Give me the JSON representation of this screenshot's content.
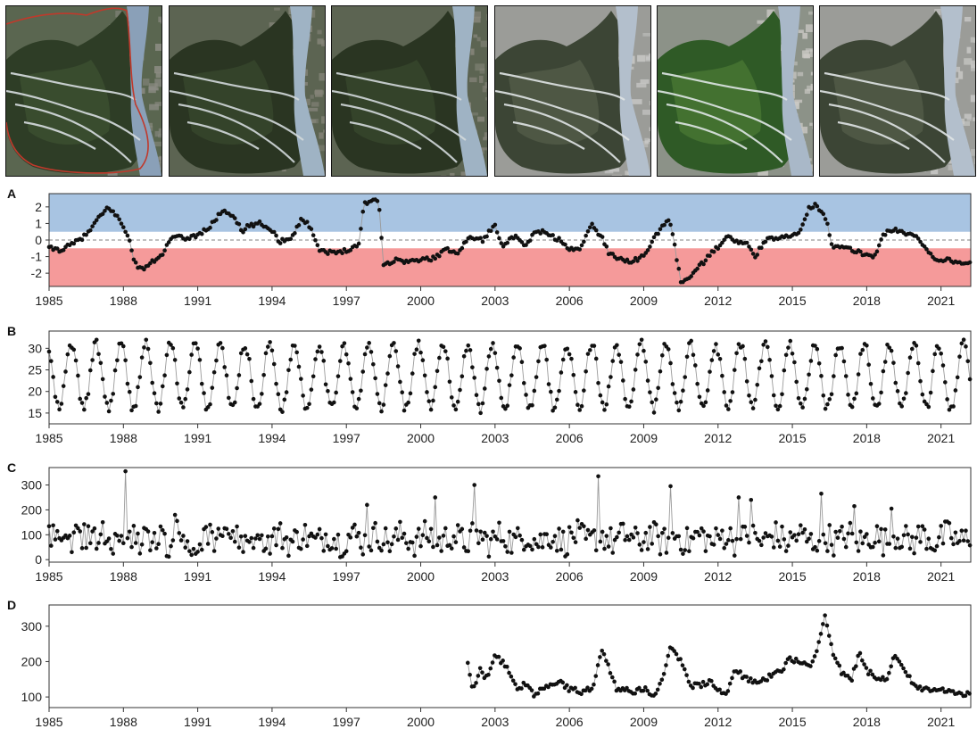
{
  "figure": {
    "satellite_tiles": [
      {
        "tone": "natural",
        "has_outline": true
      },
      {
        "tone": "natural-dark",
        "has_outline": false
      },
      {
        "tone": "natural-dark",
        "has_outline": false
      },
      {
        "tone": "bright-urban",
        "has_outline": false
      },
      {
        "tone": "vivid-green",
        "has_outline": false
      },
      {
        "tone": "bright-urban",
        "has_outline": false
      }
    ],
    "colors": {
      "positive_band": "#a8c4e2",
      "negative_band": "#f59a9a",
      "markers": "#111111",
      "line": "#9a9a9a",
      "outline": "#c0392b"
    }
  },
  "chart_data": [
    {
      "panel_label": "A",
      "type": "scatter",
      "x_range": [
        1985.0,
        2022.2
      ],
      "ylim": [
        -2.8,
        2.8
      ],
      "yticks": [
        -2,
        -1,
        0,
        1,
        2
      ],
      "xticks": [
        1985,
        1988,
        1991,
        1994,
        1997,
        2000,
        2003,
        2006,
        2009,
        2012,
        2015,
        2018,
        2021
      ],
      "shaded_bands": [
        {
          "from": 0.5,
          "to": 2.8,
          "color": "positive_band"
        },
        {
          "from": -2.8,
          "to": -0.5,
          "color": "negative_band"
        }
      ],
      "reference_line": 0,
      "anchors": [
        [
          1985.0,
          -0.5
        ],
        [
          1985.5,
          -0.6
        ],
        [
          1986.0,
          -0.2
        ],
        [
          1986.5,
          0.3
        ],
        [
          1987.0,
          1.3
        ],
        [
          1987.4,
          2.0
        ],
        [
          1987.8,
          1.3
        ],
        [
          1988.2,
          0.3
        ],
        [
          1988.4,
          -1.2
        ],
        [
          1988.7,
          -1.8
        ],
        [
          1989.0,
          -1.5
        ],
        [
          1989.5,
          -1.0
        ],
        [
          1990.0,
          0.2
        ],
        [
          1990.5,
          0.1
        ],
        [
          1991.0,
          0.3
        ],
        [
          1991.5,
          0.8
        ],
        [
          1992.0,
          1.8
        ],
        [
          1992.5,
          1.4
        ],
        [
          1992.8,
          0.4
        ],
        [
          1993.0,
          0.8
        ],
        [
          1993.5,
          1.0
        ],
        [
          1994.0,
          0.6
        ],
        [
          1994.3,
          -0.1
        ],
        [
          1994.8,
          0.2
        ],
        [
          1995.2,
          1.3
        ],
        [
          1995.6,
          0.7
        ],
        [
          1995.9,
          -0.6
        ],
        [
          1996.5,
          -0.8
        ],
        [
          1997.0,
          -0.6
        ],
        [
          1997.5,
          -0.3
        ],
        [
          1997.7,
          2.2
        ],
        [
          1998.3,
          2.5
        ],
        [
          1998.5,
          -1.5
        ],
        [
          1999.0,
          -1.2
        ],
        [
          1999.5,
          -1.3
        ],
        [
          2000.0,
          -1.2
        ],
        [
          2000.5,
          -1.1
        ],
        [
          2001.0,
          -0.6
        ],
        [
          2001.5,
          -0.7
        ],
        [
          2002.0,
          0.2
        ],
        [
          2002.5,
          0.0
        ],
        [
          2003.0,
          0.9
        ],
        [
          2003.3,
          -0.3
        ],
        [
          2003.8,
          0.2
        ],
        [
          2004.2,
          -0.4
        ],
        [
          2004.7,
          0.6
        ],
        [
          2005.2,
          0.3
        ],
        [
          2005.6,
          0.0
        ],
        [
          2006.0,
          -0.6
        ],
        [
          2006.4,
          -0.5
        ],
        [
          2006.9,
          0.9
        ],
        [
          2007.3,
          0.2
        ],
        [
          2007.6,
          -0.8
        ],
        [
          2008.0,
          -1.1
        ],
        [
          2008.5,
          -1.3
        ],
        [
          2009.0,
          -1.0
        ],
        [
          2009.5,
          0.3
        ],
        [
          2010.0,
          1.3
        ],
        [
          2010.2,
          0.1
        ],
        [
          2010.5,
          -2.6
        ],
        [
          2011.0,
          -2.0
        ],
        [
          2011.5,
          -1.2
        ],
        [
          2012.0,
          -0.4
        ],
        [
          2012.3,
          0.2
        ],
        [
          2012.8,
          -0.1
        ],
        [
          2013.2,
          -0.3
        ],
        [
          2013.5,
          -1.0
        ],
        [
          2013.9,
          0.0
        ],
        [
          2014.4,
          0.1
        ],
        [
          2014.9,
          0.2
        ],
        [
          2015.3,
          0.6
        ],
        [
          2015.7,
          2.0
        ],
        [
          2016.0,
          2.1
        ],
        [
          2016.4,
          1.2
        ],
        [
          2016.6,
          -0.4
        ],
        [
          2017.2,
          -0.5
        ],
        [
          2017.8,
          -0.8
        ],
        [
          2018.3,
          -1.0
        ],
        [
          2018.7,
          0.4
        ],
        [
          2019.2,
          0.6
        ],
        [
          2019.6,
          0.4
        ],
        [
          2020.0,
          0.2
        ],
        [
          2020.4,
          -0.5
        ],
        [
          2020.8,
          -1.2
        ],
        [
          2021.3,
          -1.2
        ],
        [
          2021.8,
          -1.4
        ],
        [
          2022.2,
          -1.3
        ]
      ]
    },
    {
      "panel_label": "B",
      "type": "line",
      "x_range": [
        1985.0,
        2022.2
      ],
      "ylim": [
        12.5,
        34
      ],
      "yticks": [
        15,
        20,
        25,
        30
      ],
      "xticks": [
        1985,
        1988,
        1991,
        1994,
        1997,
        2000,
        2003,
        2006,
        2009,
        2012,
        2015,
        2018,
        2021
      ],
      "seasonal": {
        "mean": 23.5,
        "amplitude": 7.5,
        "period_years": 1,
        "peak_phase": 0.95
      },
      "notes": "Monthly values oscillating seasonally between ~14 and ~33"
    },
    {
      "panel_label": "C",
      "type": "line",
      "x_range": [
        1985.0,
        2022.2
      ],
      "ylim": [
        -10,
        370
      ],
      "yticks": [
        0,
        100,
        200,
        300
      ],
      "xticks": [
        1985,
        1988,
        1991,
        1994,
        1997,
        2000,
        2003,
        2006,
        2009,
        2012,
        2015,
        2018,
        2021
      ],
      "spikes": [
        [
          1988.1,
          355
        ],
        [
          1990.1,
          180
        ],
        [
          1997.8,
          220
        ],
        [
          2000.6,
          250
        ],
        [
          2002.2,
          300
        ],
        [
          2007.2,
          335
        ],
        [
          2010.1,
          295
        ],
        [
          2012.8,
          250
        ],
        [
          2013.3,
          240
        ],
        [
          2016.2,
          265
        ],
        [
          2017.5,
          215
        ],
        [
          2019.0,
          205
        ]
      ],
      "baseline_mean": 85,
      "baseline_spread": 60
    },
    {
      "panel_label": "D",
      "type": "line",
      "x_range": [
        1985.0,
        2022.2
      ],
      "ylim": [
        70,
        360
      ],
      "yticks": [
        100,
        200,
        300
      ],
      "xticks": [
        1985,
        1988,
        1991,
        1994,
        1997,
        2000,
        2003,
        2006,
        2009,
        2012,
        2015,
        2018,
        2021
      ],
      "start": 2001.9,
      "anchors": [
        [
          2001.9,
          190
        ],
        [
          2002.1,
          120
        ],
        [
          2002.4,
          175
        ],
        [
          2002.7,
          150
        ],
        [
          2003.0,
          215
        ],
        [
          2003.3,
          200
        ],
        [
          2003.6,
          170
        ],
        [
          2003.9,
          125
        ],
        [
          2004.3,
          140
        ],
        [
          2004.6,
          105
        ],
        [
          2004.9,
          120
        ],
        [
          2005.3,
          135
        ],
        [
          2005.6,
          150
        ],
        [
          2006.0,
          120
        ],
        [
          2006.5,
          115
        ],
        [
          2007.0,
          130
        ],
        [
          2007.3,
          240
        ],
        [
          2007.6,
          180
        ],
        [
          2007.9,
          125
        ],
        [
          2008.3,
          120
        ],
        [
          2008.7,
          115
        ],
        [
          2009.0,
          125
        ],
        [
          2009.4,
          105
        ],
        [
          2009.7,
          140
        ],
        [
          2010.1,
          250
        ],
        [
          2010.5,
          200
        ],
        [
          2010.9,
          130
        ],
        [
          2011.3,
          135
        ],
        [
          2011.7,
          145
        ],
        [
          2012.0,
          120
        ],
        [
          2012.4,
          115
        ],
        [
          2012.7,
          175
        ],
        [
          2013.2,
          150
        ],
        [
          2013.7,
          145
        ],
        [
          2014.2,
          160
        ],
        [
          2014.6,
          175
        ],
        [
          2014.9,
          210
        ],
        [
          2015.3,
          200
        ],
        [
          2015.7,
          180
        ],
        [
          2016.0,
          230
        ],
        [
          2016.3,
          335
        ],
        [
          2016.6,
          230
        ],
        [
          2017.0,
          165
        ],
        [
          2017.4,
          150
        ],
        [
          2017.7,
          230
        ],
        [
          2018.0,
          175
        ],
        [
          2018.5,
          145
        ],
        [
          2018.9,
          160
        ],
        [
          2019.1,
          225
        ],
        [
          2019.5,
          175
        ],
        [
          2019.9,
          135
        ],
        [
          2020.4,
          120
        ],
        [
          2020.9,
          115
        ],
        [
          2021.4,
          120
        ],
        [
          2021.8,
          110
        ],
        [
          2022.2,
          110
        ]
      ]
    }
  ]
}
